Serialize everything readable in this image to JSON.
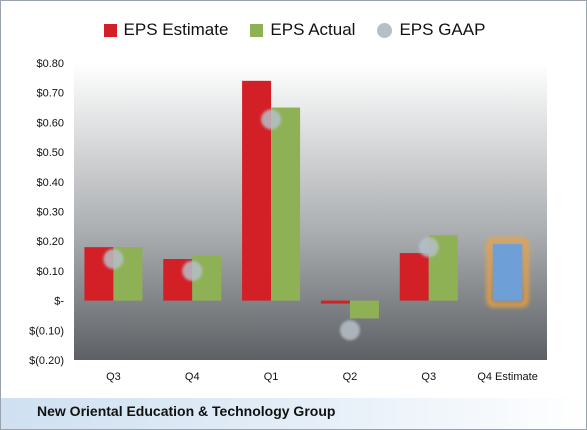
{
  "chart_data": {
    "type": "bar",
    "categories": [
      "Q3",
      "Q4",
      "Q1",
      "Q2",
      "Q3",
      "Q4 Estimate"
    ],
    "series": [
      {
        "name": "EPS Estimate",
        "color": "#d32027",
        "values": [
          0.18,
          0.14,
          0.74,
          -0.01,
          0.16,
          null
        ]
      },
      {
        "name": "EPS Actual",
        "color": "#8fb155",
        "values": [
          0.18,
          0.15,
          0.65,
          -0.06,
          0.22,
          0.19
        ]
      },
      {
        "name": "EPS GAAP",
        "color": "#b6bfc8",
        "values": [
          0.14,
          0.1,
          0.61,
          -0.1,
          0.18,
          null
        ]
      }
    ],
    "highlight": {
      "category": "Q4 Estimate",
      "color": "#6e9fd6",
      "glow": "#f2a23a"
    },
    "y_tick_labels": [
      "$0.80",
      "$0.70",
      "$0.60",
      "$0.50",
      "$0.40",
      "$0.30",
      "$0.20",
      "$0.10",
      "$-",
      "$(0.10)",
      "$(0.20)"
    ],
    "ylim": [
      -0.2,
      0.8
    ],
    "legend_position": "top",
    "grid": false,
    "background_gradient": [
      "#ffffff",
      "#5d6064"
    ]
  },
  "footer": {
    "company": "New Oriental Education & Technology Group"
  }
}
